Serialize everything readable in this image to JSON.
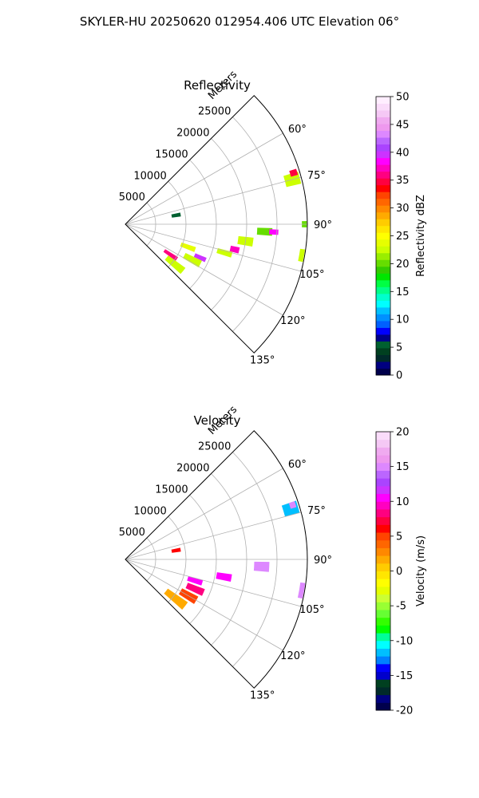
{
  "figure": {
    "suptitle": "SKYLER-HU  20250620  012954.406 UTC Elevation 06°"
  },
  "chart_data": [
    {
      "type": "heatmap",
      "subtype": "polar-sector",
      "title": "Reflectivity",
      "radial_label": "Meters",
      "radial_ticks": [
        5000,
        10000,
        15000,
        20000,
        25000
      ],
      "radial_max_m": 30000,
      "azimuth_range_deg": [
        45,
        135
      ],
      "azimuth_ticks_deg": [
        60,
        75,
        90,
        105,
        120,
        135
      ],
      "azimuth_tick_labels": [
        "60°",
        "75°",
        "90°",
        "105°",
        "120°",
        "135°"
      ],
      "grid": true,
      "colorbar": {
        "label": "Reflectivity dBZ",
        "min": 0,
        "max": 50,
        "ticks": [
          0,
          5,
          10,
          15,
          20,
          25,
          30,
          35,
          40,
          45,
          50
        ],
        "colors": [
          "#00004c",
          "#000080",
          "#002a2a",
          "#004020",
          "#006030",
          "#00008b",
          "#0000ff",
          "#0060ff",
          "#0090ff",
          "#00c0ff",
          "#00ffff",
          "#00ffcc",
          "#00ff88",
          "#00ff44",
          "#00e600",
          "#33cc00",
          "#66dd00",
          "#99ee00",
          "#ccff00",
          "#e6ff00",
          "#ffff00",
          "#ffe600",
          "#ffcc00",
          "#ffaa00",
          "#ff8800",
          "#ff6600",
          "#ff4400",
          "#ff0000",
          "#ff0040",
          "#ff0080",
          "#ff00c0",
          "#ff00ff",
          "#cc33ff",
          "#aa44ff",
          "#bb66ff",
          "#dd88ff",
          "#ee99ee",
          "#f0aaf0",
          "#f5c8f5",
          "#fadcfa",
          "#ffeeff"
        ]
      },
      "echoes": [
        {
          "az": 129,
          "r": 10500,
          "dr": 3500,
          "daz": 6,
          "value": 22
        },
        {
          "az": 124,
          "r": 9000,
          "dr": 2500,
          "daz": 4,
          "value": 36
        },
        {
          "az": 118,
          "r": 12500,
          "dr": 3000,
          "daz": 5,
          "value": 22
        },
        {
          "az": 114,
          "r": 13500,
          "dr": 2000,
          "daz": 3,
          "value": 40
        },
        {
          "az": 110,
          "r": 11000,
          "dr": 2500,
          "daz": 4,
          "value": 24
        },
        {
          "az": 106,
          "r": 17000,
          "dr": 2500,
          "daz": 3,
          "value": 22
        },
        {
          "az": 103,
          "r": 18500,
          "dr": 1500,
          "daz": 3,
          "value": 37
        },
        {
          "az": 98,
          "r": 20000,
          "dr": 2500,
          "daz": 4,
          "value": 22
        },
        {
          "az": 93,
          "r": 23000,
          "dr": 2500,
          "daz": 3,
          "value": 20
        },
        {
          "az": 93,
          "r": 24500,
          "dr": 1500,
          "daz": 2,
          "value": 38
        },
        {
          "az": 75,
          "r": 28500,
          "dr": 2500,
          "daz": 4,
          "value": 22
        },
        {
          "az": 73,
          "r": 29000,
          "dr": 1200,
          "daz": 2,
          "value": 35
        },
        {
          "az": 90,
          "r": 29500,
          "dr": 800,
          "daz": 2,
          "value": 20
        },
        {
          "az": 100,
          "r": 29500,
          "dr": 800,
          "daz": 4,
          "value": 22
        },
        {
          "az": 80,
          "r": 8500,
          "dr": 1500,
          "daz": 4,
          "value": 6
        }
      ]
    },
    {
      "type": "heatmap",
      "subtype": "polar-sector",
      "title": "Velocity",
      "radial_label": "Meters",
      "radial_ticks": [
        5000,
        10000,
        15000,
        20000,
        25000
      ],
      "radial_max_m": 30000,
      "azimuth_range_deg": [
        45,
        135
      ],
      "azimuth_ticks_deg": [
        60,
        75,
        90,
        105,
        120,
        135
      ],
      "azimuth_tick_labels": [
        "60°",
        "75°",
        "90°",
        "105°",
        "120°",
        "135°"
      ],
      "grid": true,
      "colorbar": {
        "label": "Velocity (m/s)",
        "min": -20,
        "max": 20,
        "ticks": [
          -20,
          -15,
          -10,
          -5,
          0,
          5,
          10,
          15,
          20
        ],
        "colors": [
          "#00004c",
          "#000080",
          "#002a2a",
          "#004020",
          "#0000cc",
          "#0000ff",
          "#0080ff",
          "#00bfff",
          "#00ffff",
          "#00ff99",
          "#00ff00",
          "#33ff00",
          "#66ff33",
          "#99ff33",
          "#ccff33",
          "#e6ff00",
          "#ffff00",
          "#ffe600",
          "#ffcc00",
          "#ffaa00",
          "#ff8800",
          "#ff6600",
          "#ff4400",
          "#ff0000",
          "#ff0040",
          "#ff0080",
          "#ff00c0",
          "#ff00ff",
          "#cc33ff",
          "#aa44ff",
          "#bb66ff",
          "#dd88ff",
          "#ee99ee",
          "#f0aaf0",
          "#f5c8f5",
          "#fadcfa"
        ]
      },
      "echoes": [
        {
          "az": 128,
          "r": 10500,
          "dr": 4000,
          "daz": 7,
          "value": 2
        },
        {
          "az": 120,
          "r": 12000,
          "dr": 3000,
          "daz": 6,
          "value": 5
        },
        {
          "az": 113,
          "r": 12500,
          "dr": 3000,
          "daz": 5,
          "value": 8
        },
        {
          "az": 107,
          "r": 12000,
          "dr": 2500,
          "daz": 4,
          "value": 10
        },
        {
          "az": 100,
          "r": 16500,
          "dr": 2500,
          "daz": 4,
          "value": 11
        },
        {
          "az": 93,
          "r": 22500,
          "dr": 2500,
          "daz": 4,
          "value": 15
        },
        {
          "az": 73,
          "r": 28500,
          "dr": 2500,
          "daz": 4,
          "value": -12
        },
        {
          "az": 72,
          "r": 29000,
          "dr": 1000,
          "daz": 2,
          "value": 15
        },
        {
          "az": 100,
          "r": 29500,
          "dr": 800,
          "daz": 5,
          "value": 15
        },
        {
          "az": 80,
          "r": 8500,
          "dr": 1500,
          "daz": 4,
          "value": 6
        }
      ]
    }
  ]
}
